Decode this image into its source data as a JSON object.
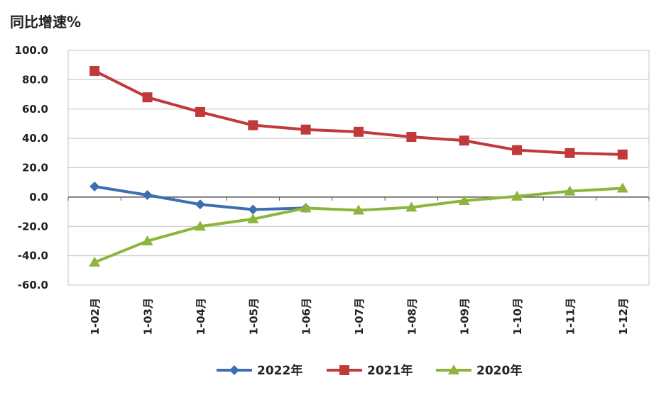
{
  "chart_data": {
    "type": "line",
    "ylabel": "同比增速%",
    "xlabel": "",
    "title": "",
    "categories": [
      "1-02月",
      "1-03月",
      "1-04月",
      "1-05月",
      "1-06月",
      "1-07月",
      "1-08月",
      "1-09月",
      "1-10月",
      "1-11月",
      "1-12月"
    ],
    "ylim": [
      -60,
      100
    ],
    "yticks": [
      "100.0",
      "80.0",
      "60.0",
      "40.0",
      "20.0",
      "0.0",
      "-20.0",
      "-40.0",
      "-60.0"
    ],
    "grid": true,
    "legend_position": "bottom",
    "series": [
      {
        "name": "2022年",
        "color": "#3c6fb0",
        "marker": "diamond",
        "values": [
          7.2,
          1.4,
          -5.0,
          -8.5,
          -7.5,
          null,
          null,
          null,
          null,
          null,
          null
        ]
      },
      {
        "name": "2021年",
        "color": "#c0393b",
        "marker": "square",
        "values": [
          86.0,
          68.0,
          58.0,
          49.0,
          46.0,
          44.5,
          41.0,
          38.5,
          32.0,
          30.0,
          29.0
        ]
      },
      {
        "name": "2020年",
        "color": "#8db43c",
        "marker": "triangle",
        "values": [
          -44.5,
          -30.0,
          -20.0,
          -15.0,
          -7.5,
          -9.0,
          -7.0,
          -2.5,
          0.5,
          4.0,
          6.0
        ]
      }
    ]
  }
}
